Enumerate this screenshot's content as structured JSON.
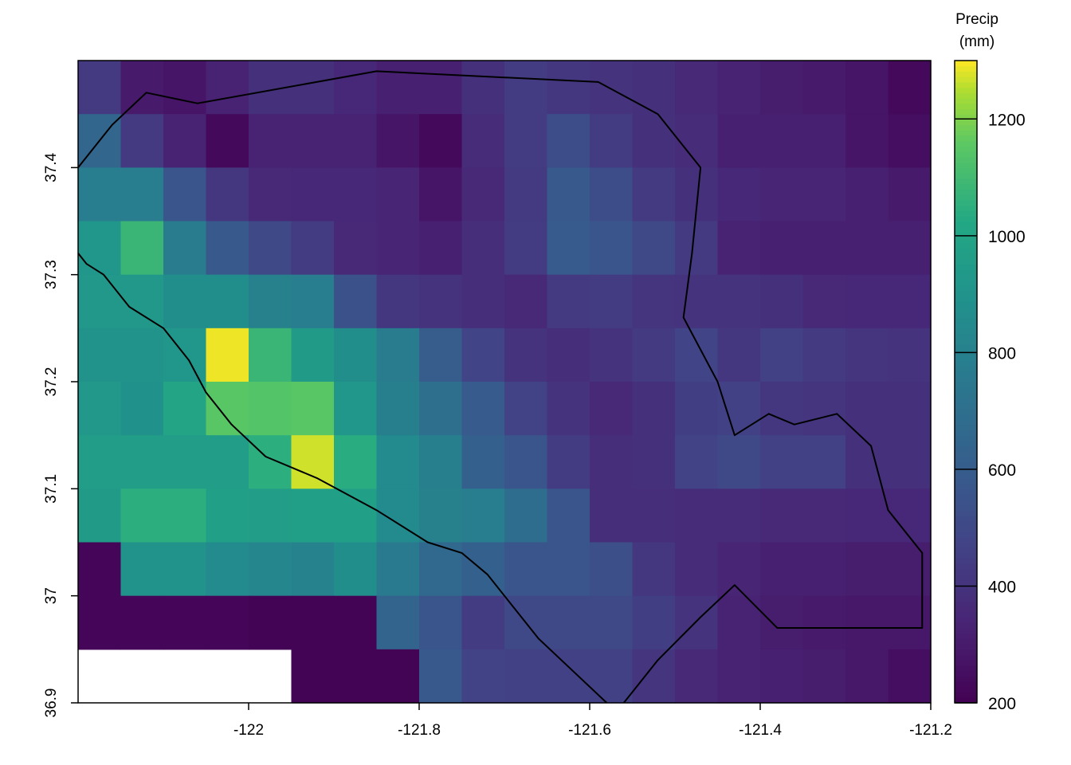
{
  "chart_data": {
    "type": "heatmap",
    "legend_title": [
      "Precip",
      "(mm)"
    ],
    "x_range": [
      -122.2,
      -121.2
    ],
    "y_range": [
      36.9,
      37.5
    ],
    "x_ticks": [
      {
        "value": -122.0,
        "label": "-122"
      },
      {
        "value": -121.8,
        "label": "-121.8"
      },
      {
        "value": -121.6,
        "label": "-121.6"
      },
      {
        "value": -121.4,
        "label": "-121.4"
      },
      {
        "value": -121.2,
        "label": "-121.2"
      }
    ],
    "y_ticks": [
      {
        "value": 36.9,
        "label": "36.9"
      },
      {
        "value": 37.0,
        "label": "37"
      },
      {
        "value": 37.1,
        "label": "37.1"
      },
      {
        "value": 37.2,
        "label": "37.2"
      },
      {
        "value": 37.3,
        "label": "37.3"
      },
      {
        "value": 37.4,
        "label": "37.4"
      }
    ],
    "colorbar": {
      "min": 200,
      "max": 1300,
      "ticks": [
        {
          "value": 200,
          "label": "200"
        },
        {
          "value": 400,
          "label": "400"
        },
        {
          "value": 600,
          "label": "600"
        },
        {
          "value": 800,
          "label": "800"
        },
        {
          "value": 1000,
          "label": "1000"
        },
        {
          "value": 1200,
          "label": "1200"
        }
      ]
    },
    "grid": {
      "x_edges": [
        -122.2,
        -122.15,
        -122.1,
        -122.05,
        -122.0,
        -121.95,
        -121.9,
        -121.85,
        -121.8,
        -121.75,
        -121.7,
        -121.65,
        -121.6,
        -121.55,
        -121.5,
        -121.45,
        -121.4,
        -121.35,
        -121.3,
        -121.25,
        -121.2
      ],
      "y_edges": [
        37.5,
        37.45,
        37.4,
        37.35,
        37.3,
        37.25,
        37.2,
        37.15,
        37.1,
        37.05,
        37.0,
        36.95,
        36.9
      ],
      "values": [
        [
          430,
          300,
          280,
          330,
          390,
          390,
          350,
          320,
          320,
          390,
          440,
          420,
          400,
          390,
          360,
          330,
          310,
          300,
          280,
          230
        ],
        [
          650,
          430,
          330,
          230,
          330,
          330,
          330,
          280,
          230,
          370,
          440,
          520,
          440,
          390,
          370,
          320,
          320,
          320,
          280,
          250
        ],
        [
          780,
          780,
          560,
          420,
          360,
          350,
          350,
          340,
          280,
          360,
          430,
          580,
          520,
          430,
          390,
          350,
          340,
          340,
          320,
          300
        ],
        [
          920,
          1080,
          770,
          580,
          500,
          440,
          360,
          340,
          320,
          380,
          440,
          590,
          560,
          500,
          430,
          330,
          320,
          320,
          320,
          320
        ],
        [
          930,
          930,
          870,
          870,
          800,
          780,
          540,
          420,
          400,
          380,
          360,
          430,
          440,
          410,
          400,
          400,
          390,
          360,
          350,
          350
        ],
        [
          900,
          900,
          920,
          1290,
          1080,
          950,
          870,
          770,
          600,
          480,
          400,
          380,
          400,
          430,
          480,
          420,
          460,
          430,
          410,
          400
        ],
        [
          930,
          890,
          1000,
          1150,
          1140,
          1150,
          920,
          790,
          700,
          590,
          470,
          400,
          360,
          390,
          450,
          460,
          420,
          410,
          390,
          390
        ],
        [
          960,
          960,
          960,
          960,
          1050,
          1270,
          1040,
          850,
          790,
          620,
          560,
          440,
          380,
          390,
          470,
          500,
          460,
          460,
          390,
          390
        ],
        [
          950,
          1050,
          1050,
          980,
          960,
          980,
          980,
          850,
          800,
          780,
          690,
          560,
          380,
          380,
          370,
          370,
          360,
          360,
          350,
          350
        ],
        [
          220,
          900,
          900,
          850,
          830,
          810,
          870,
          760,
          660,
          620,
          560,
          560,
          530,
          420,
          370,
          340,
          320,
          320,
          310,
          310
        ],
        [
          220,
          220,
          220,
          220,
          210,
          210,
          210,
          640,
          560,
          440,
          500,
          500,
          500,
          450,
          400,
          330,
          310,
          300,
          290,
          290
        ],
        [
          null,
          null,
          null,
          null,
          null,
          210,
          210,
          210,
          580,
          470,
          460,
          460,
          460,
          410,
          360,
          330,
          320,
          310,
          290,
          250
        ]
      ]
    },
    "boundary": [
      [
        -122.2,
        37.32
      ],
      [
        -122.19,
        37.31
      ],
      [
        -122.17,
        37.3
      ],
      [
        -122.14,
        37.27
      ],
      [
        -122.1,
        37.25
      ],
      [
        -122.07,
        37.22
      ],
      [
        -122.05,
        37.19
      ],
      [
        -122.02,
        37.16
      ],
      [
        -121.98,
        37.13
      ],
      [
        -121.92,
        37.11
      ],
      [
        -121.85,
        37.08
      ],
      [
        -121.79,
        37.05
      ],
      [
        -121.75,
        37.04
      ],
      [
        -121.72,
        37.02
      ],
      [
        -121.69,
        36.99
      ],
      [
        -121.66,
        36.96
      ],
      [
        -121.62,
        36.93
      ],
      [
        -121.58,
        36.9
      ]
    ],
    "boundary2": [
      [
        -121.56,
        36.9
      ],
      [
        -121.52,
        36.94
      ],
      [
        -121.47,
        36.98
      ],
      [
        -121.43,
        37.01
      ],
      [
        -121.38,
        36.97
      ],
      [
        -121.3,
        36.97
      ],
      [
        -121.21,
        36.97
      ],
      [
        -121.21,
        37.04
      ],
      [
        -121.25,
        37.08
      ],
      [
        -121.27,
        37.14
      ],
      [
        -121.31,
        37.17
      ],
      [
        -121.36,
        37.16
      ],
      [
        -121.39,
        37.17
      ],
      [
        -121.43,
        37.15
      ],
      [
        -121.45,
        37.2
      ],
      [
        -121.49,
        37.26
      ],
      [
        -121.48,
        37.32
      ],
      [
        -121.47,
        37.4
      ],
      [
        -121.52,
        37.45
      ],
      [
        -121.59,
        37.48
      ],
      [
        -121.85,
        37.49
      ],
      [
        -122.06,
        37.46
      ],
      [
        -122.12,
        37.47
      ],
      [
        -122.16,
        37.44
      ],
      [
        -122.2,
        37.4
      ]
    ]
  }
}
